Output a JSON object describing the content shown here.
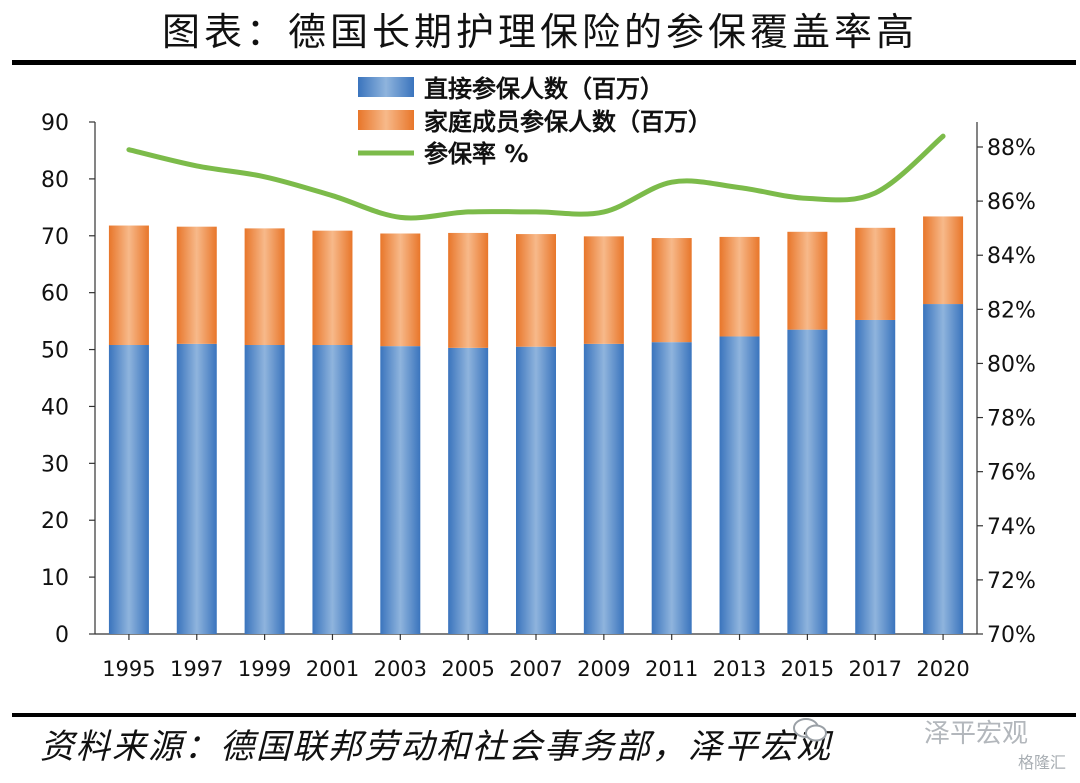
{
  "title": "图表：德国长期护理保险的参保覆盖率高",
  "source": "资料来源：德国联邦劳动和社会事务部，泽平宏观",
  "watermark": {
    "text": "泽平宏观",
    "sub": "格隆汇"
  },
  "chart_data": {
    "type": "bar",
    "stacked": true,
    "categories": [
      "1995",
      "1997",
      "1999",
      "2001",
      "2003",
      "2005",
      "2007",
      "2009",
      "2011",
      "2013",
      "2015",
      "2017",
      "2020"
    ],
    "series": [
      {
        "name": "直接参保人数（百万）",
        "type": "bar",
        "axis": "left",
        "color": "#4f86c6",
        "values": [
          50.8,
          51.0,
          50.8,
          50.8,
          50.6,
          50.3,
          50.5,
          51.0,
          51.3,
          52.3,
          53.5,
          55.2,
          58.0
        ]
      },
      {
        "name": "家庭成员参保人数（百万）",
        "type": "bar",
        "axis": "left",
        "color": "#f0883a",
        "values": [
          21.0,
          20.6,
          20.5,
          20.1,
          19.8,
          20.2,
          19.8,
          18.9,
          18.3,
          17.5,
          17.2,
          16.2,
          15.4
        ]
      },
      {
        "name": "参保率 %",
        "type": "line",
        "axis": "right",
        "color": "#7cbb4a",
        "values": [
          87.9,
          87.3,
          86.9,
          86.2,
          85.4,
          85.6,
          85.6,
          85.6,
          86.7,
          86.5,
          86.1,
          86.3,
          88.4
        ]
      }
    ],
    "ylim": [
      0,
      90
    ],
    "yticks": [
      0,
      10,
      20,
      30,
      40,
      50,
      60,
      70,
      80,
      90
    ],
    "y2lim": [
      70,
      89
    ],
    "y2ticks": [
      "70%",
      "72%",
      "74%",
      "76%",
      "78%",
      "80%",
      "82%",
      "84%",
      "86%",
      "88%"
    ],
    "legend_position": "top-center",
    "grid": false
  }
}
